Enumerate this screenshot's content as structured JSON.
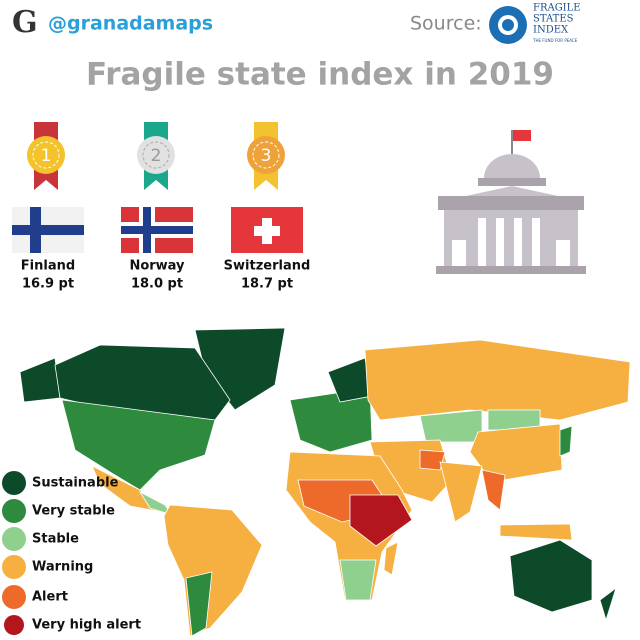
{
  "header": {
    "handle": "@granadamaps",
    "source_label": "Source:",
    "source_name_lines": [
      "FRAGILE",
      "STATES",
      "INDEX"
    ],
    "source_tagline": "THE FUND FOR PEACE"
  },
  "title": "Fragile state index in 2019",
  "podium": [
    {
      "rank": "1",
      "country": "Finland",
      "score": "16.9 pt"
    },
    {
      "rank": "2",
      "country": "Norway",
      "score": "18.0 pt"
    },
    {
      "rank": "3",
      "country": "Switzerland",
      "score": "18.7 pt"
    }
  ],
  "legend": [
    {
      "label": "Sustainable",
      "color": "#0d4a2a"
    },
    {
      "label": "Very stable",
      "color": "#2e8b3e"
    },
    {
      "label": "Stable",
      "color": "#8fd08f"
    },
    {
      "label": "Warning",
      "color": "#f5b041"
    },
    {
      "label": "Alert",
      "color": "#ee6a2a"
    },
    {
      "label": "Very high alert",
      "color": "#b3161c"
    }
  ]
}
